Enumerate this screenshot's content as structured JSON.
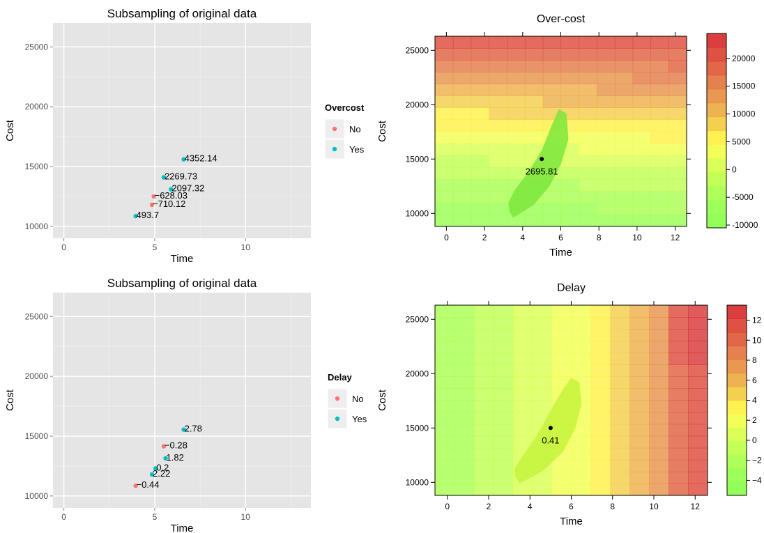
{
  "colors": {
    "no": "#f8766d",
    "yes": "#00bfc4",
    "panel_bg": "#e5e5e5",
    "grid": "#ffffff",
    "point_black": "#000000",
    "legend_key_bg": "#eeeeee"
  },
  "chart_data": [
    {
      "id": "scatter-overcost",
      "type": "scatter",
      "title": "Subsampling of original data",
      "xlabel": "Time",
      "ylabel": "Cost",
      "xlim": [
        -0.6,
        13.6
      ],
      "ylim": [
        9000,
        27000
      ],
      "xticks": [
        0,
        5,
        10
      ],
      "xtick_labels": [
        "0",
        "5",
        "10"
      ],
      "yticks": [
        10000,
        15000,
        20000,
        25000
      ],
      "ytick_labels": [
        "10000",
        "15000",
        "20000",
        "25000"
      ],
      "grid": true,
      "legend": {
        "title": "Overcost",
        "position": "right",
        "entries": [
          "No",
          "Yes"
        ]
      },
      "series": [
        {
          "name": "No",
          "points": [
            {
              "x": 4.95,
              "y": 12500,
              "label": "−628.03"
            },
            {
              "x": 4.85,
              "y": 11800,
              "label": "−710.12"
            }
          ]
        },
        {
          "name": "Yes",
          "points": [
            {
              "x": 6.6,
              "y": 15600,
              "label": "4352.14"
            },
            {
              "x": 5.5,
              "y": 14100,
              "label": "2269.73"
            },
            {
              "x": 5.9,
              "y": 13100,
              "label": "2097.32"
            },
            {
              "x": 3.95,
              "y": 10850,
              "label": "493.7"
            }
          ]
        }
      ]
    },
    {
      "id": "heatmap-overcost",
      "type": "heatmap",
      "title": "Over-cost",
      "xlabel": "Time",
      "ylabel": "Cost",
      "xlim": [
        -0.6,
        12.6
      ],
      "ylim": [
        8800,
        26300
      ],
      "xticks": [
        0,
        2,
        4,
        6,
        8,
        10,
        12
      ],
      "xtick_labels": [
        "0",
        "2",
        "4",
        "6",
        "8",
        "10",
        "12"
      ],
      "yticks": [
        10000,
        15000,
        20000,
        25000
      ],
      "ytick_labels": [
        "10000",
        "15000",
        "20000",
        "25000"
      ],
      "colorbar": {
        "min": -10500,
        "max": 24500,
        "ticks": [
          -10000,
          -5000,
          0,
          5000,
          10000,
          15000,
          20000
        ],
        "tick_labels": [
          "-10000",
          "-5000",
          "0",
          "5000",
          "10000",
          "15000",
          "20000"
        ],
        "colors": [
          "#80ff3c",
          "#8cff3c",
          "#a0ff3c",
          "#b8ff3c",
          "#d4ff3c",
          "#f0ff3c",
          "#ffee30",
          "#f2c833",
          "#eba533",
          "#e58533",
          "#e06a30",
          "#dc4c28",
          "#d83222",
          "#d41c1c"
        ]
      },
      "region": {
        "bottom_value": -8000,
        "top_value": 21000,
        "time_gradient": 150
      },
      "confidence_region": [
        [
          3.3,
          10200
        ],
        [
          3.5,
          9600
        ],
        [
          4.6,
          10800
        ],
        [
          5.4,
          12500
        ],
        [
          6.0,
          14500
        ],
        [
          6.4,
          16800
        ],
        [
          6.3,
          19200
        ],
        [
          5.9,
          19600
        ],
        [
          5.5,
          18000
        ],
        [
          5.0,
          15800
        ],
        [
          4.3,
          13800
        ],
        [
          3.6,
          12200
        ],
        [
          3.25,
          11000
        ]
      ],
      "confidence_color": "#7ce63c",
      "point": {
        "x": 5.0,
        "y": 15000,
        "label": "2695.81"
      }
    },
    {
      "id": "scatter-delay",
      "type": "scatter",
      "title": "Subsampling of original data",
      "xlabel": "Time",
      "ylabel": "Cost",
      "xlim": [
        -0.6,
        13.6
      ],
      "ylim": [
        9000,
        27000
      ],
      "xticks": [
        0,
        5,
        10
      ],
      "xtick_labels": [
        "0",
        "5",
        "10"
      ],
      "yticks": [
        10000,
        15000,
        20000,
        25000
      ],
      "ytick_labels": [
        "10000",
        "15000",
        "20000",
        "25000"
      ],
      "grid": true,
      "legend": {
        "title": "Delay",
        "position": "right",
        "entries": [
          "No",
          "Yes"
        ]
      },
      "series": [
        {
          "name": "No",
          "points": [
            {
              "x": 5.5,
              "y": 14150,
              "label": "−0.28"
            },
            {
              "x": 3.95,
              "y": 10850,
              "label": "−0.44"
            }
          ]
        },
        {
          "name": "Yes",
          "points": [
            {
              "x": 6.6,
              "y": 15550,
              "label": "2.78"
            },
            {
              "x": 5.6,
              "y": 13150,
              "label": "1.82"
            },
            {
              "x": 5.05,
              "y": 12300,
              "label": "0.2"
            },
            {
              "x": 4.85,
              "y": 11800,
              "label": "2.22"
            }
          ]
        }
      ]
    },
    {
      "id": "heatmap-delay",
      "type": "heatmap",
      "title": "Delay",
      "xlabel": "Time",
      "ylabel": "Cost",
      "xlim": [
        -0.6,
        12.6
      ],
      "ylim": [
        8800,
        26300
      ],
      "xticks": [
        0,
        2,
        4,
        6,
        8,
        10,
        12
      ],
      "xtick_labels": [
        "0",
        "2",
        "4",
        "6",
        "8",
        "10",
        "12"
      ],
      "yticks": [
        10000,
        15000,
        20000,
        25000
      ],
      "ytick_labels": [
        "10000",
        "15000",
        "20000",
        "25000"
      ],
      "colorbar": {
        "min": -5.5,
        "max": 13.5,
        "ticks": [
          -4,
          -2,
          0,
          2,
          4,
          6,
          8,
          10,
          12
        ],
        "tick_labels": [
          "−4",
          "−2",
          "0",
          "2",
          "4",
          "6",
          "8",
          "10",
          "12"
        ],
        "colors": [
          "#80ff3c",
          "#8cff3c",
          "#a0ff3c",
          "#b8ff3c",
          "#d4ff3c",
          "#f0ff3c",
          "#ffee30",
          "#f2c833",
          "#eba533",
          "#e58533",
          "#e06a30",
          "#dc4c28",
          "#d83222",
          "#d41c1c"
        ]
      },
      "columns": {
        "start": -0.5,
        "width": 1.0,
        "values": [
          -2.0,
          -1.6,
          -1.0,
          -0.4,
          0.3,
          1.2,
          2.2,
          3.2,
          4.4,
          6.2,
          7.6,
          9.6,
          10.8
        ],
        "top_extra": [
          0,
          0,
          0,
          0,
          0,
          0,
          0,
          0,
          0,
          0,
          0,
          1.2,
          2.0
        ]
      },
      "confidence_region": [
        [
          3.3,
          10500
        ],
        [
          3.5,
          9900
        ],
        [
          4.6,
          11000
        ],
        [
          5.6,
          12800
        ],
        [
          6.2,
          15000
        ],
        [
          6.5,
          17200
        ],
        [
          6.4,
          19200
        ],
        [
          6.0,
          19600
        ],
        [
          5.6,
          18600
        ],
        [
          5.0,
          16600
        ],
        [
          4.3,
          14200
        ],
        [
          3.6,
          12300
        ],
        [
          3.25,
          11200
        ]
      ],
      "confidence_color": "#c4f33c",
      "point": {
        "x": 5.0,
        "y": 15000,
        "label": "0.41"
      }
    }
  ]
}
